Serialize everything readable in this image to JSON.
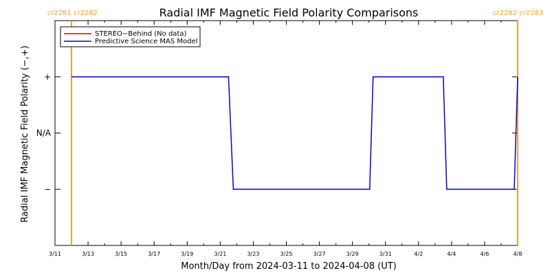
{
  "chart_data": {
    "type": "line",
    "title": "Radial IMF Magnetic Field Polarity Comparisons",
    "xlabel": "Month/Day from 2024-03-11 to 2024-04-08 (UT)",
    "ylabel": "Radial IMF Magnetic Field Polarity (−,+)",
    "xlim": [
      "2024-03-11",
      "2024-04-08"
    ],
    "x_ticks": [
      "3/11",
      "3/13",
      "3/15",
      "3/17",
      "3/19",
      "3/21",
      "3/23",
      "3/25",
      "3/27",
      "3/29",
      "3/31",
      "4/2",
      "4/4",
      "4/6",
      "4/8"
    ],
    "y_ticks": [
      {
        "value": 1,
        "label": "+"
      },
      {
        "value": 0,
        "label": "N/A"
      },
      {
        "value": -1,
        "label": "−"
      }
    ],
    "ylim": [
      -2,
      2
    ],
    "legend": {
      "placement": "top-left",
      "entries": [
        {
          "label": "STEREO−Behind (No data)",
          "color": "#cc0000"
        },
        {
          "label": "Predictive Science MAS Model",
          "color": "#0000cc"
        }
      ]
    },
    "series": [
      {
        "name": "Predictive Science MAS Model",
        "color": "#0000cc",
        "points": [
          [
            "2024-03-12 00:00",
            1
          ],
          [
            "2024-03-21 12:00",
            1
          ],
          [
            "2024-03-21 19:00",
            -1
          ],
          [
            "2024-03-30 01:00",
            -1
          ],
          [
            "2024-03-30 06:00",
            1
          ],
          [
            "2024-04-03 12:00",
            1
          ],
          [
            "2024-04-03 17:00",
            -1
          ],
          [
            "2024-04-07 19:00",
            -1
          ],
          [
            "2024-04-08 00:00",
            1
          ]
        ]
      },
      {
        "name": "STEREO−Behind (No data)",
        "color": "#cc0000",
        "points": []
      }
    ],
    "carrington_markers": [
      {
        "label": "cr2281  cr2282",
        "date": "2024-03-12 00:00",
        "placement": "left"
      },
      {
        "label": "cr2282  cr2283",
        "date": "2024-04-08 00:00",
        "placement": "right"
      }
    ],
    "marker_color": "#f0a030"
  }
}
